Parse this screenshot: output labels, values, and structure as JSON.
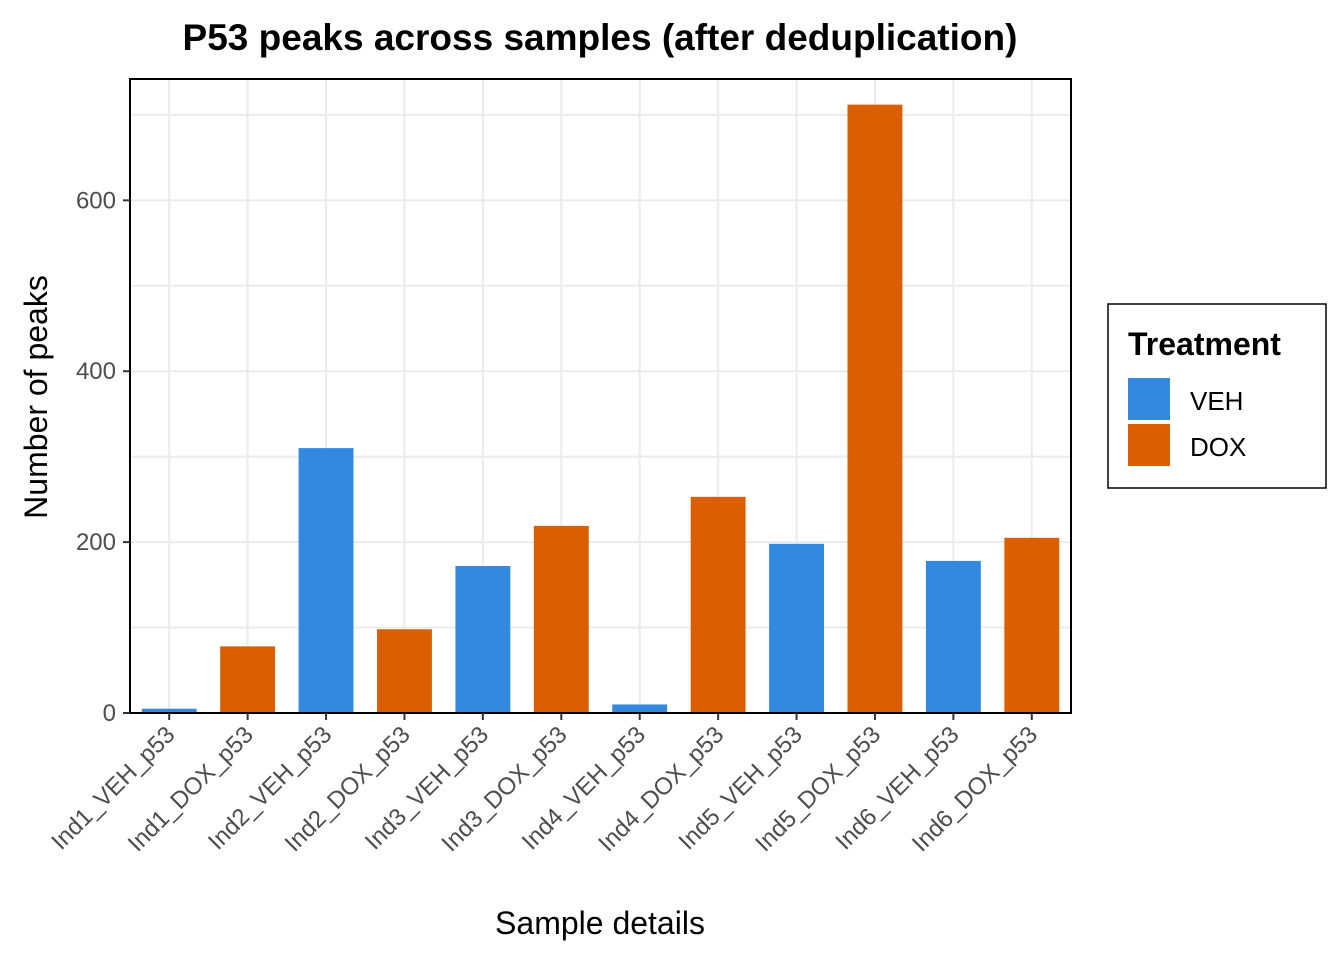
{
  "chart_data": {
    "type": "bar",
    "title": "P53 peaks across samples (after deduplication)",
    "xlabel": "Sample details",
    "ylabel": "Number of peaks",
    "ylim": [
      0,
      742
    ],
    "yticks": [
      0,
      200,
      400,
      600
    ],
    "grid": true,
    "legend_position": "right",
    "categories": [
      "Ind1_VEH_p53",
      "Ind1_DOX_p53",
      "Ind2_VEH_p53",
      "Ind2_DOX_p53",
      "Ind3_VEH_p53",
      "Ind3_DOX_p53",
      "Ind4_VEH_p53",
      "Ind4_DOX_p53",
      "Ind5_VEH_p53",
      "Ind5_DOX_p53",
      "Ind6_VEH_p53",
      "Ind6_DOX_p53"
    ],
    "values": [
      5,
      78,
      310,
      98,
      172,
      219,
      10,
      253,
      198,
      712,
      178,
      205
    ],
    "treatment": [
      "VEH",
      "DOX",
      "VEH",
      "DOX",
      "VEH",
      "DOX",
      "VEH",
      "DOX",
      "VEH",
      "DOX",
      "VEH",
      "DOX"
    ],
    "legend": {
      "title": "Treatment",
      "entries": [
        {
          "name": "VEH",
          "color": "#3388e0"
        },
        {
          "name": "DOX",
          "color": "#d95f02"
        }
      ]
    }
  }
}
